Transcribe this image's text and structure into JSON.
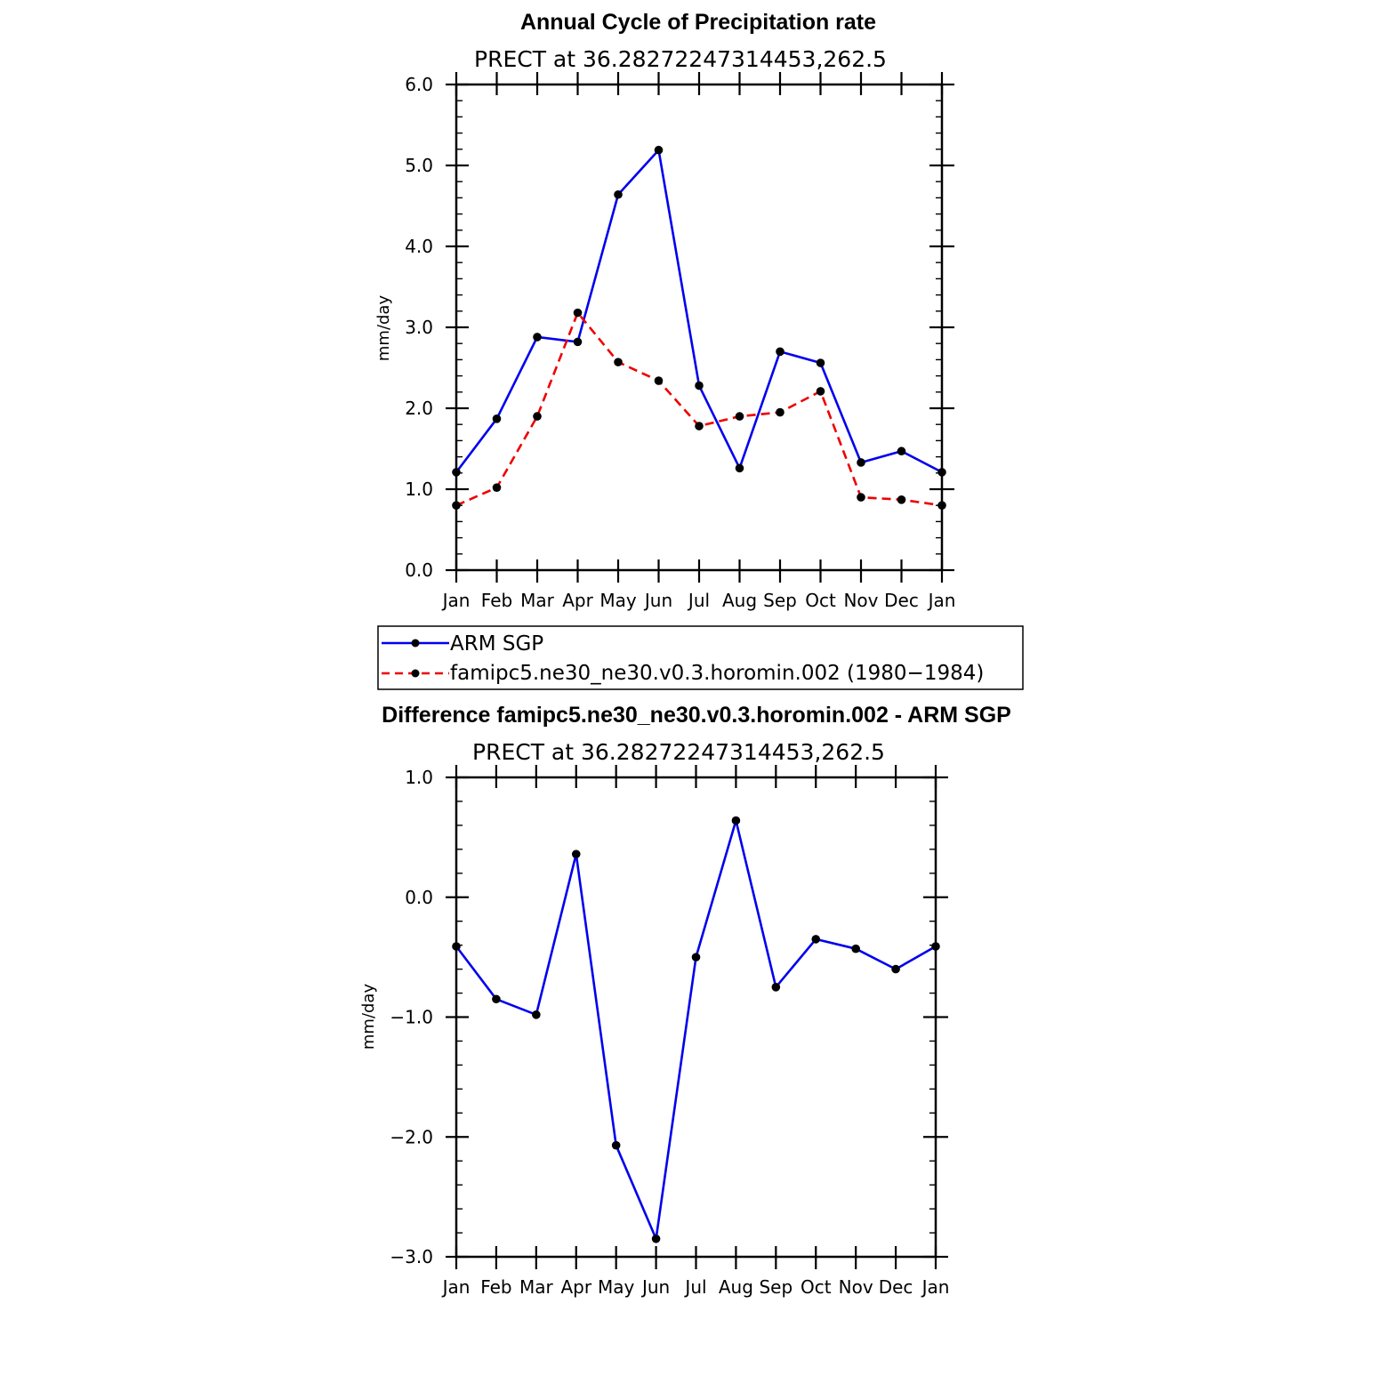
{
  "colors": {
    "blue": "#0000ee",
    "red": "#ee0000",
    "marker": "#000000"
  },
  "chart_data": [
    {
      "type": "line",
      "title": "Annual Cycle of Precipitation rate",
      "subtitle": "PRECT at 36.28272247314453,262.5",
      "ylabel": "mm/day",
      "xlabel": "",
      "categories": [
        "Jan",
        "Feb",
        "Mar",
        "Apr",
        "May",
        "Jun",
        "Jul",
        "Aug",
        "Sep",
        "Oct",
        "Nov",
        "Dec",
        "Jan"
      ],
      "ylim": [
        0,
        6
      ],
      "yticks": [
        0,
        1,
        2,
        3,
        4,
        5,
        6
      ],
      "ytick_labels": [
        "0.0",
        "1.0",
        "2.0",
        "3.0",
        "4.0",
        "5.0",
        "6.0"
      ],
      "series": [
        {
          "name": "ARM SGP",
          "style": "solid",
          "color": "#0000ee",
          "values": [
            1.21,
            1.87,
            2.88,
            2.82,
            4.64,
            5.19,
            2.28,
            1.26,
            2.7,
            2.56,
            1.33,
            1.47,
            1.21
          ]
        },
        {
          "name": "famipc5.ne30_ne30.v0.3.horomin.002 (1980−1984)",
          "style": "dashed",
          "color": "#ee0000",
          "values": [
            0.8,
            1.02,
            1.9,
            3.18,
            2.57,
            2.34,
            1.78,
            1.9,
            1.95,
            2.21,
            0.9,
            0.87,
            0.8
          ]
        }
      ],
      "legend": [
        {
          "label": "ARM SGP"
        },
        {
          "label": "famipc5.ne30_ne30.v0.3.horomin.002 (1980−1984)"
        }
      ]
    },
    {
      "type": "line",
      "title": "Difference famipc5.ne30_ne30.v0.3.horomin.002 - ARM SGP",
      "subtitle": "PRECT at 36.28272247314453,262.5",
      "ylabel": "mm/day",
      "xlabel": "",
      "categories": [
        "Jan",
        "Feb",
        "Mar",
        "Apr",
        "May",
        "Jun",
        "Jul",
        "Aug",
        "Sep",
        "Oct",
        "Nov",
        "Dec",
        "Jan"
      ],
      "ylim": [
        -3,
        1
      ],
      "yticks": [
        -3,
        -2,
        -1,
        0,
        1
      ],
      "ytick_labels": [
        "−3.0",
        "−2.0",
        "−1.0",
        "0.0",
        "1.0"
      ],
      "series": [
        {
          "name": "Difference",
          "style": "solid",
          "color": "#0000ee",
          "values": [
            -0.41,
            -0.85,
            -0.98,
            0.36,
            -2.07,
            -2.85,
            -0.5,
            0.64,
            -0.75,
            -0.35,
            -0.43,
            -0.6,
            -0.41
          ]
        }
      ]
    }
  ]
}
